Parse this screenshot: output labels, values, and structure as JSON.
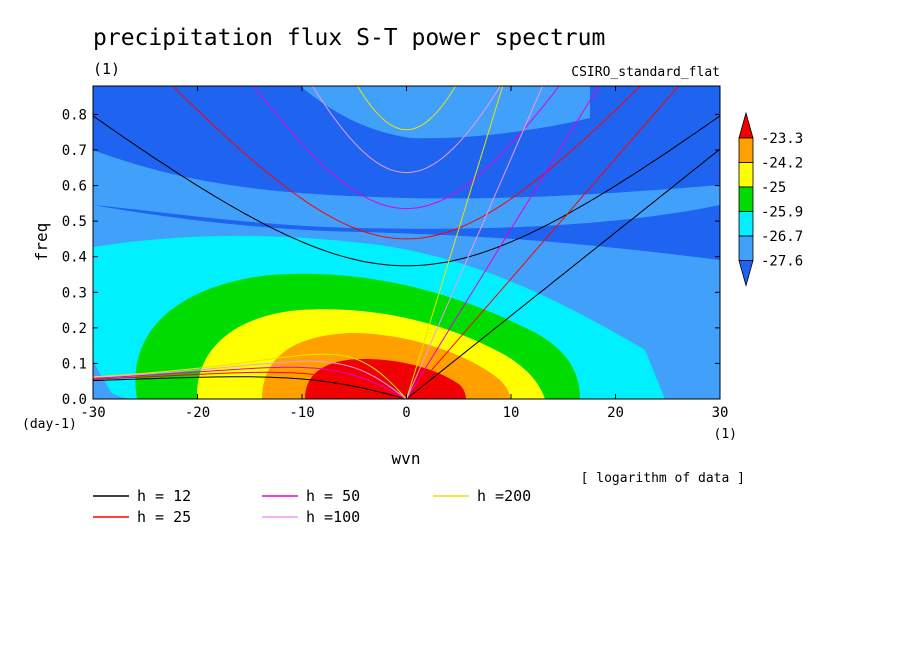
{
  "chart_data": {
    "type": "heatmap",
    "title": "precipitation flux S-T power spectrum",
    "units_label": "(1)",
    "model_label": "CSIRO_standard_flat",
    "xlabel": "wvn",
    "xunit_label": "(1)",
    "ylabel": "freq",
    "yunit_label": "(day-1)",
    "xlim": [
      -30,
      30
    ],
    "ylim": [
      0,
      0.88
    ],
    "x_ticks": [
      -30,
      -20,
      -10,
      0,
      10,
      20,
      30
    ],
    "x_tick_labels": [
      "-30",
      "-20",
      "-10",
      "0",
      "10",
      "20",
      "30"
    ],
    "y_ticks": [
      0,
      0.1,
      0.2,
      0.3,
      0.4,
      0.5,
      0.6,
      0.7,
      0.8
    ],
    "y_tick_labels": [
      "0.0",
      "0.1",
      "0.2",
      "0.3",
      "0.4",
      "0.5",
      "0.6",
      "0.7",
      "0.8"
    ],
    "note": "[ logarithm of data ]",
    "colorbar": {
      "levels": [
        -27.6,
        -26.7,
        -25.9,
        -25,
        -24.2,
        -23.3
      ],
      "level_labels": [
        "-27.6",
        "-26.7",
        "-25.9",
        "-25",
        "-24.2",
        "-23.3"
      ],
      "colors": [
        "#1e64f0",
        "#40a0fa",
        "#00f0ff",
        "#00dc00",
        "#ffff00",
        "#ffa000",
        "#f00000"
      ],
      "extend": "both"
    },
    "contour_regions": [
      {
        "level": "-27.6",
        "color": "#1e64f0",
        "approx_extent": "background"
      },
      {
        "level": "-26.7",
        "color": "#40a0fa",
        "peak": [
          -5,
          0.06
        ]
      },
      {
        "level": "-25.9",
        "color": "#00f0ff",
        "peak": [
          -5,
          0.06
        ]
      },
      {
        "level": "-25",
        "color": "#00dc00",
        "peak": [
          -5,
          0.06
        ]
      },
      {
        "level": "-24.2",
        "color": "#ffff00",
        "peak": [
          -5,
          0.06
        ]
      },
      {
        "level": "-23.3",
        "color": "#ffa000",
        "peak": [
          -5,
          0.06
        ]
      },
      {
        "level": ">-23.3",
        "color": "#f00000",
        "peak": [
          -5,
          0.06
        ]
      }
    ],
    "dispersion_curves": [
      {
        "label": "h = 12",
        "color": "#000000",
        "equivalent_depth_m": 12
      },
      {
        "label": "h = 25",
        "color": "#ff0000",
        "equivalent_depth_m": 25
      },
      {
        "label": "h = 50",
        "color": "#e000e0",
        "equivalent_depth_m": 50
      },
      {
        "label": "h =100",
        "color": "#ee99ee",
        "equivalent_depth_m": 100
      },
      {
        "label": "h =200",
        "color": "#e6e600",
        "equivalent_depth_m": 200
      }
    ],
    "legend": {
      "placement": "bottom-left",
      "entries": [
        "h = 12",
        "h = 25",
        "h = 50",
        "h =100",
        "h =200"
      ]
    }
  }
}
